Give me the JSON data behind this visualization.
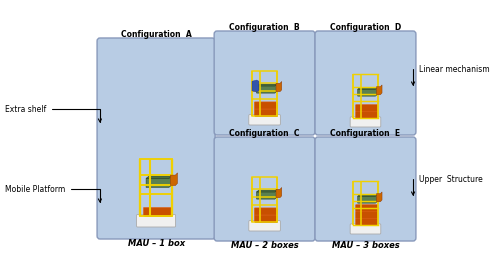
{
  "bg_color": "#ffffff",
  "panel_bg": "#b8cce4",
  "panel_border": "#9aaabb",
  "yellow": "#f0d000",
  "orange": "#c85000",
  "orange2": "#e06010",
  "green": "#4a7040",
  "green2": "#5a8050",
  "white_base": "#f0f0f0",
  "blue_box": "#4466aa",
  "annotations_left": [
    "Extra shelf",
    "Mobile Platform"
  ],
  "annotations_right": [
    "Linear mechanism",
    "Upper Structure"
  ],
  "config_labels": [
    "Configuration  A",
    "Configuration  B",
    "Configuration  C",
    "Configuration  D",
    "Configuration  E"
  ],
  "mau_labels": [
    "MAU – 1 box",
    "MAU – 2 boxes",
    "MAU – 3 boxes"
  ],
  "figsize": [
    5.0,
    2.54
  ],
  "dpi": 100
}
